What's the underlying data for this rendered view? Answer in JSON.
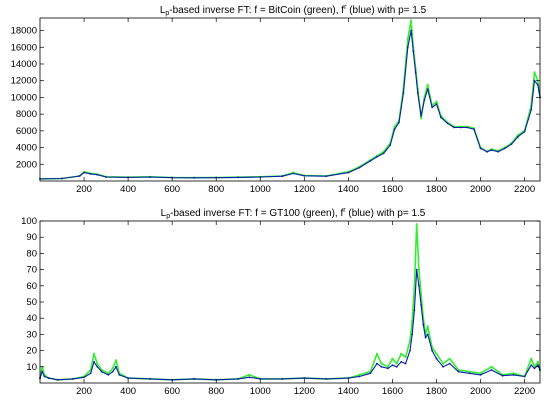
{
  "chart_data": [
    {
      "type": "line",
      "title_parts": [
        "L",
        "p",
        "-based inverse FT: f = BitCoin (green), f",
        "r",
        " (blue) with p= 1.5"
      ],
      "xlabel": "",
      "ylabel": "",
      "xlim": [
        0,
        2270
      ],
      "ylim": [
        0,
        19500
      ],
      "xticks": [
        200,
        400,
        600,
        800,
        1000,
        1200,
        1400,
        1600,
        1800,
        2000,
        2200
      ],
      "yticks": [
        2000,
        4000,
        6000,
        8000,
        10000,
        12000,
        14000,
        16000,
        18000
      ],
      "grid": false,
      "series": [
        {
          "role": "f (green)",
          "color": "#33ee33",
          "x": [
            0,
            100,
            180,
            200,
            230,
            260,
            300,
            400,
            500,
            600,
            700,
            800,
            900,
            1000,
            1100,
            1150,
            1200,
            1300,
            1400,
            1450,
            1500,
            1530,
            1560,
            1590,
            1610,
            1630,
            1650,
            1670,
            1685,
            1695,
            1705,
            1715,
            1730,
            1745,
            1760,
            1780,
            1800,
            1820,
            1850,
            1880,
            1910,
            1940,
            1970,
            2000,
            2030,
            2050,
            2080,
            2110,
            2140,
            2170,
            2200,
            2230,
            2245,
            2260,
            2270
          ],
          "y": [
            250,
            300,
            600,
            1100,
            900,
            800,
            500,
            450,
            500,
            420,
            400,
            420,
            450,
            500,
            600,
            1000,
            650,
            600,
            1100,
            1700,
            2500,
            3000,
            3500,
            4500,
            6500,
            7200,
            11000,
            17000,
            19200,
            16000,
            13500,
            11000,
            7500,
            10000,
            11500,
            9000,
            9500,
            7800,
            7000,
            6500,
            6500,
            6500,
            6300,
            4000,
            3500,
            3800,
            3600,
            4000,
            4500,
            5500,
            6000,
            9000,
            13000,
            12000,
            10000
          ]
        },
        {
          "role": "f^r (blue)",
          "color": "#0a1ea8",
          "x": [
            0,
            100,
            180,
            200,
            230,
            260,
            300,
            400,
            500,
            600,
            700,
            800,
            900,
            1000,
            1100,
            1150,
            1200,
            1300,
            1400,
            1450,
            1500,
            1530,
            1560,
            1590,
            1610,
            1630,
            1650,
            1670,
            1685,
            1695,
            1705,
            1715,
            1730,
            1745,
            1760,
            1780,
            1800,
            1820,
            1850,
            1880,
            1910,
            1940,
            1970,
            2000,
            2030,
            2050,
            2080,
            2110,
            2140,
            2170,
            2200,
            2230,
            2245,
            2260,
            2270
          ],
          "y": [
            250,
            300,
            600,
            1000,
            850,
            750,
            480,
            430,
            480,
            400,
            380,
            400,
            430,
            480,
            580,
            900,
            620,
            580,
            1000,
            1600,
            2400,
            2900,
            3300,
            4300,
            6200,
            7000,
            10500,
            16000,
            18000,
            15500,
            13000,
            10500,
            7800,
            9700,
            11000,
            8800,
            9200,
            7600,
            6900,
            6400,
            6400,
            6400,
            6200,
            3900,
            3500,
            3700,
            3500,
            3900,
            4400,
            5300,
            5900,
            8500,
            12000,
            11500,
            10000
          ]
        }
      ]
    },
    {
      "type": "line",
      "title_parts": [
        "L",
        "p",
        "-based inverse FT: f = GT100 (green), f",
        "r",
        " (blue) with p= 1.5"
      ],
      "xlabel": "",
      "ylabel": "",
      "xlim": [
        0,
        2270
      ],
      "ylim": [
        0,
        100
      ],
      "xticks": [
        200,
        400,
        600,
        800,
        1000,
        1200,
        1400,
        1600,
        1800,
        2000,
        2200
      ],
      "yticks": [
        10,
        20,
        30,
        40,
        50,
        60,
        70,
        80,
        90,
        100
      ],
      "grid": false,
      "series": [
        {
          "role": "f (green)",
          "color": "#33ee33",
          "x": [
            0,
            10,
            20,
            40,
            80,
            150,
            200,
            230,
            245,
            260,
            280,
            310,
            330,
            345,
            360,
            400,
            500,
            600,
            700,
            800,
            900,
            950,
            1000,
            1100,
            1200,
            1300,
            1400,
            1450,
            1500,
            1530,
            1550,
            1580,
            1600,
            1620,
            1640,
            1660,
            1680,
            1690,
            1700,
            1710,
            1720,
            1730,
            1740,
            1750,
            1760,
            1780,
            1800,
            1830,
            1860,
            1900,
            1950,
            2000,
            2050,
            2100,
            2150,
            2200,
            2230,
            2245,
            2260,
            2270
          ],
          "y": [
            3,
            10,
            5,
            3,
            2,
            2.5,
            4,
            8,
            18,
            12,
            8,
            6,
            9,
            14,
            6,
            3,
            2.5,
            2,
            2.5,
            2,
            2.5,
            5,
            2.5,
            2.5,
            3,
            2.5,
            3,
            5,
            7,
            18,
            12,
            10,
            15,
            12,
            18,
            16,
            26,
            38,
            60,
            98,
            70,
            55,
            40,
            30,
            35,
            22,
            18,
            12,
            15,
            8,
            7,
            6,
            10,
            5,
            6,
            4,
            15,
            10,
            13,
            8
          ]
        },
        {
          "role": "f^r (blue)",
          "color": "#0a1ea8",
          "x": [
            0,
            10,
            20,
            40,
            80,
            150,
            200,
            230,
            245,
            260,
            280,
            310,
            330,
            345,
            360,
            400,
            500,
            600,
            700,
            800,
            900,
            950,
            1000,
            1100,
            1200,
            1300,
            1400,
            1450,
            1500,
            1530,
            1550,
            1580,
            1600,
            1620,
            1640,
            1660,
            1680,
            1690,
            1700,
            1710,
            1720,
            1730,
            1740,
            1750,
            1760,
            1780,
            1800,
            1830,
            1860,
            1900,
            1950,
            2000,
            2050,
            2100,
            2150,
            2200,
            2230,
            2245,
            2260,
            2270
          ],
          "y": [
            3,
            7,
            4,
            3,
            2,
            2.5,
            3.5,
            6,
            13,
            10,
            7,
            5,
            7,
            10,
            5,
            3,
            2.5,
            2,
            2.5,
            2,
            2.5,
            3.5,
            2.5,
            2.5,
            3,
            2.5,
            3,
            4,
            6,
            12,
            10,
            9,
            11,
            10,
            13,
            12,
            20,
            30,
            45,
            70,
            60,
            48,
            36,
            28,
            30,
            20,
            15,
            10,
            12,
            7,
            6,
            5,
            8,
            4.5,
            5,
            4,
            11,
            9,
            11,
            8
          ]
        }
      ]
    }
  ]
}
